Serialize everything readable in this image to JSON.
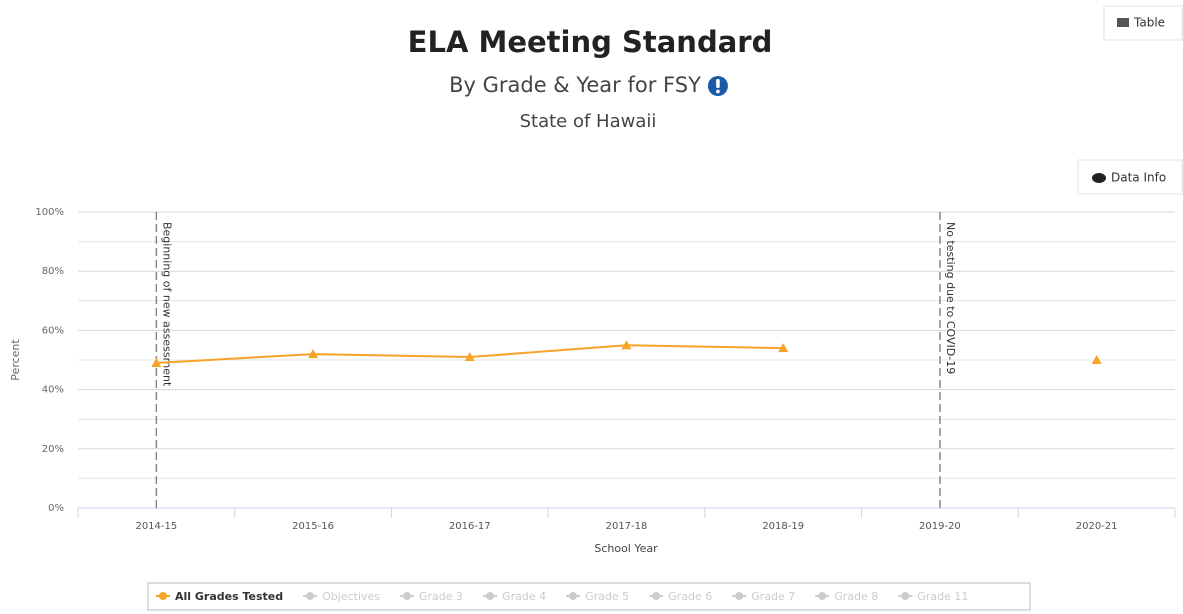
{
  "chart_data": {
    "type": "line",
    "title": "ELA Meeting Standard",
    "subtitle": "By Grade & Year for FSY",
    "location": "State of Hawaii",
    "buttons": {
      "table": "Table",
      "data_info": "Data Info"
    },
    "x_label": "School Year",
    "y_label": "Percent",
    "categories": [
      "2014-15",
      "2015-16",
      "2016-17",
      "2017-18",
      "2018-19",
      "2019-20",
      "2020-21"
    ],
    "series": [
      {
        "name": "All Grades Tested",
        "color": "#f7a325",
        "values": [
          49,
          52,
          51,
          55,
          54,
          null,
          50
        ]
      }
    ],
    "hidden_series": [
      "Objectives",
      "Grade 3",
      "Grade 4",
      "Grade 5",
      "Grade 6",
      "Grade 7",
      "Grade 8",
      "Grade 11"
    ],
    "annotations": [
      {
        "category": 0,
        "text": "Beginning of new assessment"
      },
      {
        "category": 5,
        "text": "No testing due to COVID-19"
      }
    ],
    "ylim": [
      0,
      100
    ],
    "yticks": [
      {
        "value": 0,
        "label": "0%"
      },
      {
        "value": 20,
        "label": "20%"
      },
      {
        "value": 40,
        "label": "40%"
      },
      {
        "value": 60,
        "label": "60%"
      },
      {
        "value": 80,
        "label": "80%"
      },
      {
        "value": 100,
        "label": "100%"
      }
    ],
    "minor_yticks": [
      10,
      30,
      50,
      70,
      90
    ],
    "grid": true
  }
}
